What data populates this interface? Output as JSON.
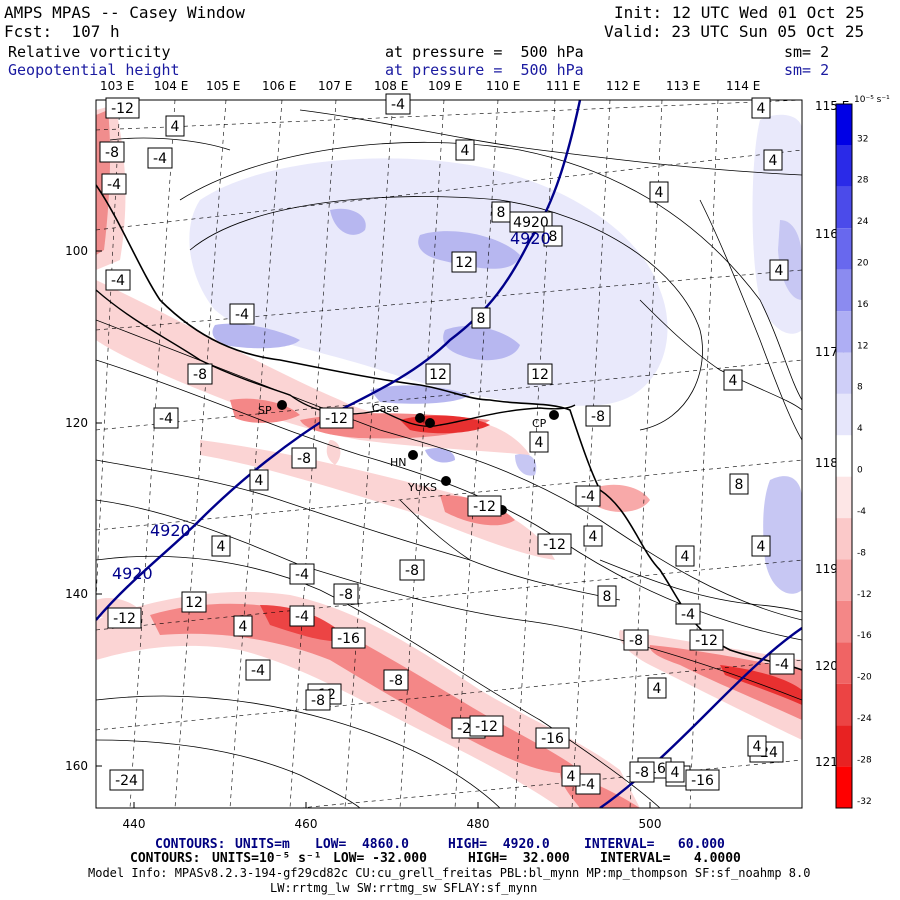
{
  "header": {
    "title": "AMPS MPAS -- Casey Window",
    "forecast": "Fcst:  107 h",
    "init": "Init: 12 UTC Wed 01 Oct 25",
    "valid": "Valid: 23 UTC Sun 05 Oct 25",
    "field1": {
      "name": "Relative vorticity",
      "level": "at pressure =  500 hPa",
      "sm": "sm= 2"
    },
    "field2": {
      "name": "Geopotential height",
      "level": "at pressure =  500 hPa",
      "sm": "sm= 2"
    }
  },
  "map": {
    "top_lon_labels": [
      "103 E",
      "104 E",
      "105 E",
      "106 E",
      "107 E",
      "108 E",
      "109 E",
      "110 E",
      "111 E",
      "112 E",
      "113 E",
      "114 E"
    ],
    "right_lon_labels": [
      "115 E",
      "116 E",
      "117 E",
      "118 E",
      "119 E",
      "120 E",
      "121 E"
    ],
    "y_ticks": [
      "100",
      "120",
      "140",
      "160"
    ],
    "x_ticks": [
      "440",
      "460",
      "480",
      "500"
    ],
    "height_label": "4920",
    "vorticity_labels": [
      "-12",
      "4",
      "-4",
      "4",
      "-4",
      "4",
      "-8",
      "4",
      "-4",
      "4",
      "8",
      "4920",
      "8",
      "4",
      "-4",
      "12",
      "8",
      "-4",
      "12",
      "12",
      "4",
      "-8",
      "8",
      "-12",
      "-8",
      "-4",
      "-12",
      "-4",
      "4",
      "-8",
      "4",
      "8",
      "4",
      "-12",
      "4",
      "-8",
      "8",
      "4",
      "-4",
      "4",
      "-12",
      "-4",
      "-4",
      "12",
      "-8",
      "4",
      "-4",
      "-16",
      "-4",
      "-8",
      "-12",
      "4",
      "-20",
      "-16",
      "-24",
      "-8",
      "-24",
      "-4",
      "-16",
      "-4",
      "-8",
      "-12",
      "-12",
      "4",
      "-8",
      "-16",
      "4",
      "4"
    ],
    "stations": [
      "SP",
      "Case",
      "CP",
      "HN",
      "YUKS"
    ]
  },
  "colorbar": {
    "unit": "10⁻⁵ s⁻¹",
    "ticks": [
      "32",
      "28",
      "24",
      "20",
      "16",
      "12",
      "8",
      "4",
      "0",
      "-4",
      "-8",
      "-12",
      "-16",
      "-20",
      "-24",
      "-28",
      "-32"
    ],
    "colors": [
      "#0000e6",
      "#2a2ae8",
      "#4b4bea",
      "#6868ee",
      "#8b8bf0",
      "#aeaef4",
      "#cfcff8",
      "#e6e6fb",
      "#ffffff",
      "#fde6e6",
      "#fbc9c9",
      "#f8a9a9",
      "#f48787",
      "#f06464",
      "#ec4444",
      "#e82222",
      "#ff0000"
    ]
  },
  "footer": {
    "line1": {
      "label": "CONTOURS:",
      "units": "UNITS=m",
      "low": "LOW=  4860.0",
      "high": "HIGH=  4920.0",
      "interval": "INTERVAL=   60.000"
    },
    "line2": {
      "label": "CONTOURS:",
      "units": "UNITS=10⁻⁵ s⁻¹",
      "low": "LOW= -32.000",
      "high": "HIGH=  32.000",
      "interval": "INTERVAL=   4.0000"
    },
    "model_info": "Model Info: MPASv8.2.3-194-gf29cd82c CU:cu_grell_freitas PBL:bl_mynn MP:mp_thompson SF:sf_noahmp 8.0",
    "model_info2": "LW:rrtmg_lw SW:rrtmg_sw SFLAY:sf_mynn"
  }
}
